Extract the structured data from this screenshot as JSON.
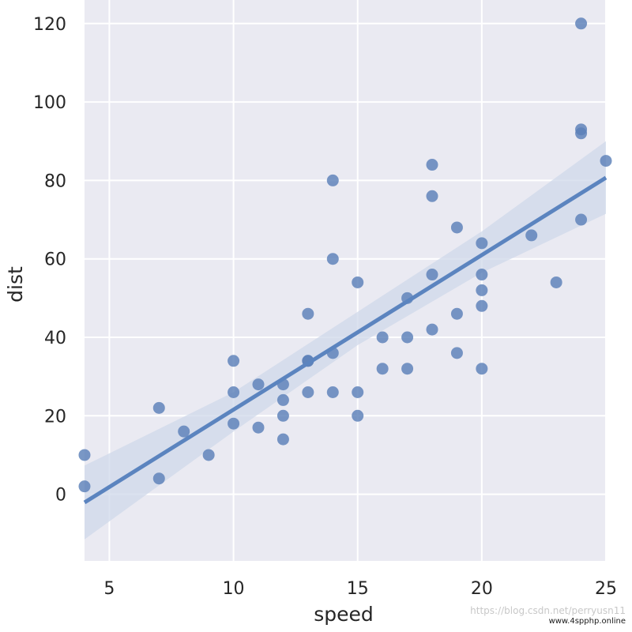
{
  "chart_data": {
    "type": "scatter",
    "xlabel": "speed",
    "ylabel": "dist",
    "xlim": [
      4,
      25
    ],
    "ylim": [
      -17,
      126
    ],
    "xticks": [
      5,
      10,
      15,
      20,
      25
    ],
    "yticks": [
      0,
      20,
      40,
      60,
      80,
      100,
      120
    ],
    "grid": true,
    "x": [
      4,
      4,
      7,
      7,
      8,
      9,
      10,
      10,
      10,
      11,
      11,
      12,
      12,
      12,
      12,
      13,
      13,
      13,
      13,
      14,
      14,
      14,
      14,
      15,
      15,
      15,
      16,
      16,
      17,
      17,
      17,
      18,
      18,
      18,
      18,
      19,
      19,
      19,
      20,
      20,
      20,
      20,
      20,
      22,
      23,
      24,
      24,
      24,
      24,
      25
    ],
    "y": [
      2,
      10,
      4,
      22,
      16,
      10,
      18,
      26,
      34,
      17,
      28,
      14,
      20,
      24,
      28,
      26,
      34,
      34,
      46,
      26,
      36,
      60,
      80,
      20,
      26,
      54,
      32,
      40,
      32,
      40,
      50,
      42,
      56,
      76,
      84,
      36,
      46,
      68,
      32,
      48,
      52,
      56,
      64,
      66,
      54,
      70,
      92,
      93,
      120,
      85
    ],
    "regression": {
      "line": [
        [
          4,
          -2.1
        ],
        [
          25,
          80.7
        ]
      ],
      "ci_lower": [
        [
          4,
          -11.5
        ],
        [
          10,
          16.0
        ],
        [
          15,
          38.0
        ],
        [
          20,
          56.5
        ],
        [
          25,
          71.5
        ]
      ],
      "ci_upper": [
        [
          4,
          7.3
        ],
        [
          10,
          26.0
        ],
        [
          15,
          46.5
        ],
        [
          20,
          67.0
        ],
        [
          25,
          90.0
        ]
      ]
    },
    "colors": {
      "background": "#eaeaf2",
      "grid": "#ffffff",
      "points": "#5b80b8",
      "line": "#5b84bf",
      "band": "#cfd8ea"
    }
  },
  "watermark": {
    "line1": "https://blog.csdn.net/perryusn11",
    "line2": "www.4spphp.online"
  }
}
